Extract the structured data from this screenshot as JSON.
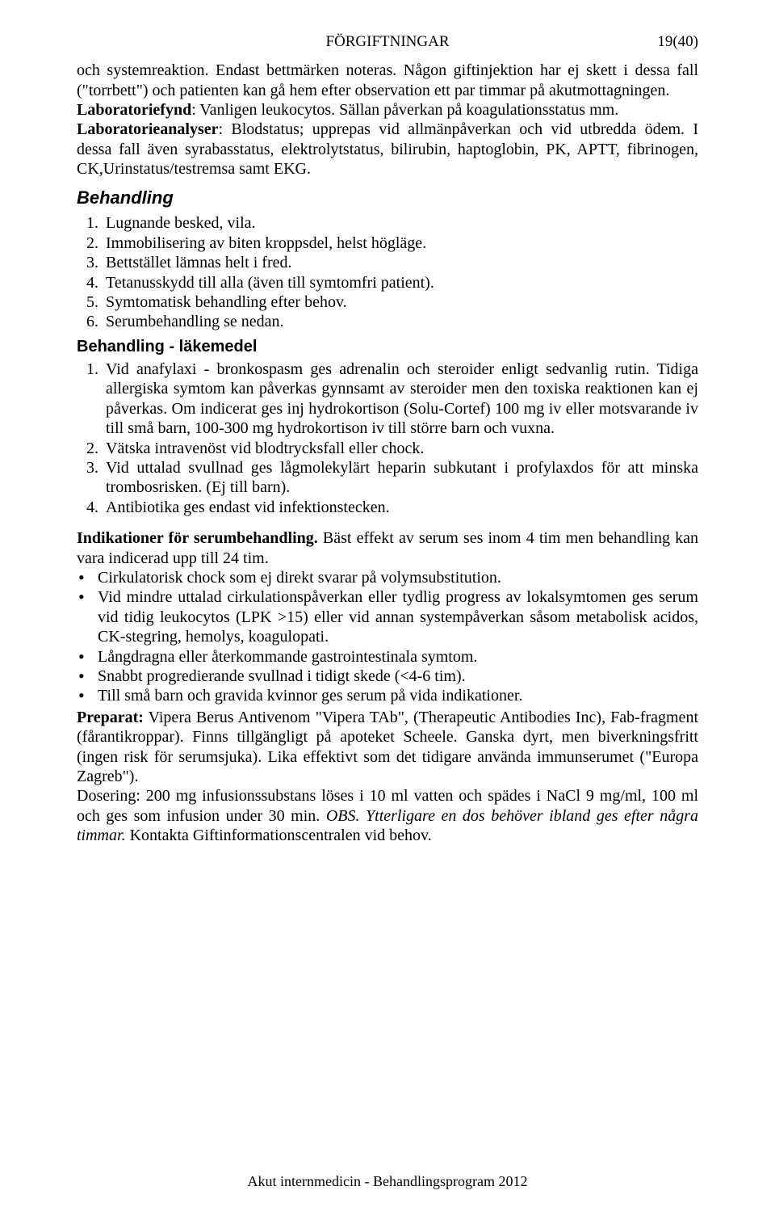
{
  "header": {
    "center": "FÖRGIFTNINGAR",
    "right": "19(40)"
  },
  "intro": {
    "p1a": "och systemreaktion. Endast bettmärken noteras. Någon giftinjektion har ej skett i dessa fall (\"torrbett\") och patienten kan gå hem efter observation ett par timmar på akutmottagningen.",
    "lab1_label": "Laboratoriefynd",
    "lab1_text": ": Vanligen leukocytos. Sällan påverkan på koagulationsstatus mm.",
    "lab2_label": "Laboratorieanalyser",
    "lab2_text": ": Blodstatus; upprepas vid allmänpåverkan och vid utbredda ödem. I dessa fall även syrabasstatus, elektrolytstatus, bilirubin, haptoglobin, PK, APTT, fibrinogen, CK,Urinstatus/testremsa samt EKG."
  },
  "behandling": {
    "title": "Behandling",
    "items": [
      "Lugnande besked, vila.",
      "Immobilisering av biten kroppsdel, helst högläge.",
      "Bettstället lämnas helt i fred.",
      "Tetanusskydd till alla (även till symtomfri patient).",
      "Symtomatisk behandling efter behov.",
      "Serumbehandling se nedan."
    ]
  },
  "lakemedel": {
    "title": "Behandling - läkemedel",
    "items": [
      "Vid anafylaxi - bronkospasm ges adrenalin och steroider enligt sedvanlig rutin. Tidiga allergiska symtom kan påverkas gynnsamt av steroider men den toxiska reaktionen kan ej påverkas. Om indicerat ges inj hydrokortison (Solu-Cortef) 100 mg iv eller motsvarande iv till små barn, 100-300 mg hydrokortison iv till större barn och vuxna.",
      "Vätska intravenöst vid blodtrycksfall eller chock.",
      "Vid uttalad svullnad ges lågmolekylärt heparin subkutant i profylaxdos för att minska trombosrisken. (Ej till barn).",
      "Antibiotika ges endast vid infektionstecken."
    ]
  },
  "serum": {
    "intro_label": "Indikationer för serumbehandling.",
    "intro_text": " Bäst effekt av serum ses inom 4 tim men behandling kan vara indicerad upp till 24 tim.",
    "bullets": [
      "Cirkulatorisk chock som ej direkt svarar på volymsubstitution.",
      "Vid mindre uttalad cirkulationspåverkan eller tydlig progress av lokalsymtomen ges serum vid tidig leukocytos (LPK >15) eller vid annan systempåverkan såsom metabolisk acidos, CK-stegring, hemolys, koagulopati.",
      "Långdragna eller återkommande gastrointestinala symtom.",
      "Snabbt progredierande svullnad i tidigt skede (<4-6 tim).",
      "Till små barn och gravida kvinnor ges serum på vida indikationer."
    ],
    "preparat_label": "Preparat:",
    "preparat_text": " Vipera Berus Antivenom \"Vipera TAb\", (Therapeutic Antibodies Inc), Fab-fragment (fårantikroppar). Finns tillgängligt på apoteket Scheele. Ganska dyrt, men biverkningsfritt (ingen risk för serumsjuka). Lika effektivt som det tidigare använda immunserumet (\"Europa Zagreb\").",
    "dosering_a": "Dosering: 200 mg infusionssubstans löses i 10 ml vatten och spädes i NaCl 9 mg/ml, 100 ml och ges som infusion under 30 min. ",
    "dosering_obs": "OBS. Ytterligare en dos behöver ibland ges efter några timmar.",
    "dosering_b": " Kontakta Giftinformationscentralen vid behov."
  },
  "footer": "Akut internmedicin - Behandlingsprogram 2012"
}
